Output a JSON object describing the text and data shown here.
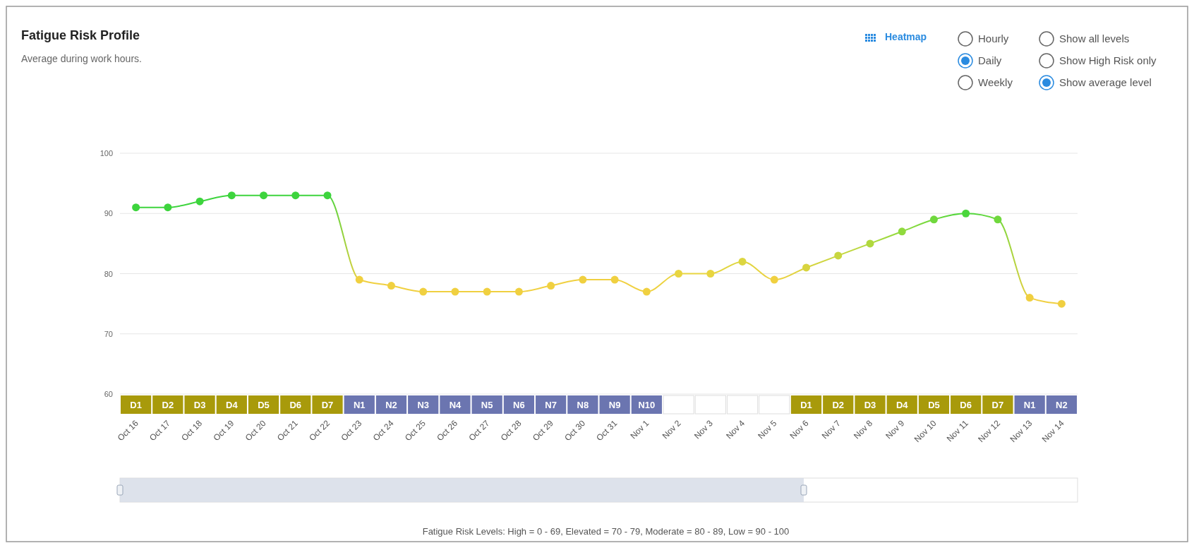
{
  "chart_data": {
    "type": "line",
    "title": "Fatigue Risk Profile",
    "subtitle": "Average during work hours.",
    "categories": [
      "Oct 16",
      "Oct 17",
      "Oct 18",
      "Oct 19",
      "Oct 20",
      "Oct 21",
      "Oct 22",
      "Oct 23",
      "Oct 24",
      "Oct 25",
      "Oct 26",
      "Oct 27",
      "Oct 28",
      "Oct 29",
      "Oct 30",
      "Oct 31",
      "Nov 1",
      "Nov 2",
      "Nov 3",
      "Nov 4",
      "Nov 5",
      "Nov 6",
      "Nov 7",
      "Nov 8",
      "Nov 9",
      "Nov 10",
      "Nov 11",
      "Nov 12",
      "Nov 13",
      "Nov 14"
    ],
    "series": [
      {
        "values": [
          91,
          91,
          92,
          93,
          93,
          93,
          93,
          79,
          78,
          77,
          77,
          77,
          77,
          78,
          79,
          79,
          77,
          80,
          80,
          82,
          79,
          81,
          83,
          85,
          87,
          89,
          90,
          89,
          76,
          75
        ],
        "colors": [
          "#3dd43d",
          "#3dd43d",
          "#3dd43d",
          "#3dd43d",
          "#3dd43d",
          "#3dd43d",
          "#3dd43d",
          "#f0d040",
          "#f0d040",
          "#f0d040",
          "#f0d040",
          "#f0d040",
          "#f0d040",
          "#f0d040",
          "#f0d040",
          "#f0d040",
          "#f0d040",
          "#e8d540",
          "#e8d540",
          "#dcd640",
          "#f0d040",
          "#d8d43f",
          "#c8d63f",
          "#b0d83e",
          "#90da3e",
          "#70d83d",
          "#4ad63c",
          "#70d83d",
          "#f0cf40",
          "#f0cf40"
        ]
      }
    ],
    "ylim": [
      60,
      100
    ],
    "yticks": [
      60,
      70,
      80,
      90,
      100
    ],
    "grid": "y",
    "marker": "circle",
    "line_style": "solid",
    "annotations": [
      "Fatigue Risk Levels: High = 0 - 69, Elevated = 70 - 79, Moderate = 80 - 89, Low = 90 - 100",
      "Heatmap",
      "Hourly",
      "Daily",
      "Weekly",
      "Show all levels",
      "Show High Risk only",
      "Show average level",
      "D1",
      "D2",
      "D3",
      "D4",
      "D5",
      "D6",
      "D7",
      "N1",
      "N2",
      "N3",
      "N4",
      "N5",
      "N6",
      "N7",
      "N8",
      "N9",
      "N10",
      "D1",
      "D2",
      "D3",
      "D4",
      "D5",
      "D6",
      "D7",
      "N1",
      "N2"
    ]
  }
}
